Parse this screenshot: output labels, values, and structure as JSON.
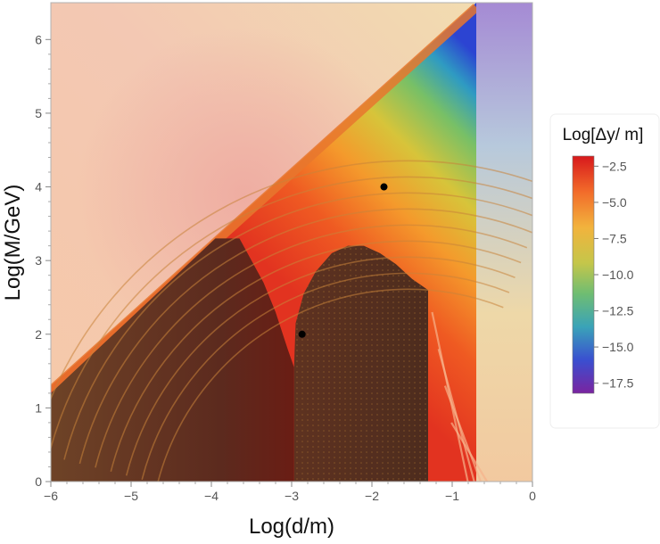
{
  "chart_data": {
    "type": "heatmap",
    "xlabel": "Log(d/m)",
    "ylabel": "Log(M/GeV)",
    "xlim": [
      -6,
      0
    ],
    "ylim": [
      0,
      6.5
    ],
    "x_ticks": [
      -6,
      -5,
      -4,
      -3,
      -2,
      -1,
      0
    ],
    "x_tick_labels": [
      "−6",
      "−5",
      "−4",
      "−3",
      "−2",
      "−1",
      "0"
    ],
    "y_ticks": [
      0,
      1,
      2,
      3,
      4,
      5,
      6
    ],
    "y_tick_labels": [
      "0",
      "1",
      "2",
      "3",
      "4",
      "5",
      "6"
    ],
    "colorbar": {
      "title": "Log[Δy/ m]",
      "range": [
        -18.2,
        -1.8
      ],
      "ticks": [
        -2.5,
        -5.0,
        -7.5,
        -10.0,
        -12.5,
        -15.0,
        -17.5
      ],
      "tick_labels": [
        "−2.5",
        "−5.0",
        "−7.5",
        "−10.0",
        "−12.5",
        "−15.0",
        "−17.5"
      ],
      "colors": [
        "#d73027",
        "#f26b2a",
        "#f2b33d",
        "#b8c54a",
        "#4fb4a0",
        "#3f64c8",
        "#6a2aa8"
      ]
    },
    "boundary_line": [
      [
        -6,
        1.3
      ],
      [
        -0.7,
        6.5
      ]
    ],
    "vertical_cutoff_x": -0.7,
    "excluded_regions": [
      {
        "polygon": [
          [
            -6,
            1.2
          ],
          [
            -3.95,
            3.3
          ],
          [
            -3.65,
            3.3
          ],
          [
            -3.35,
            2.7
          ],
          [
            -3.2,
            2.3
          ],
          [
            -3.05,
            1.8
          ],
          [
            -2.97,
            1.55
          ],
          [
            -2.97,
            0
          ],
          [
            -6,
            0
          ]
        ]
      },
      {
        "polygon": [
          [
            -2.97,
            1.55
          ],
          [
            -2.95,
            2.15
          ],
          [
            -2.85,
            2.55
          ],
          [
            -2.7,
            2.85
          ],
          [
            -2.5,
            3.1
          ],
          [
            -2.3,
            3.2
          ],
          [
            -2.1,
            3.2
          ],
          [
            -1.9,
            3.1
          ],
          [
            -1.7,
            2.95
          ],
          [
            -1.5,
            2.75
          ],
          [
            -1.3,
            2.6
          ],
          [
            -1.3,
            0
          ],
          [
            -2.97,
            0
          ]
        ]
      }
    ],
    "points": [
      {
        "x": -1.85,
        "y": 4.0
      },
      {
        "x": -2.87,
        "y": 2.0
      }
    ]
  }
}
